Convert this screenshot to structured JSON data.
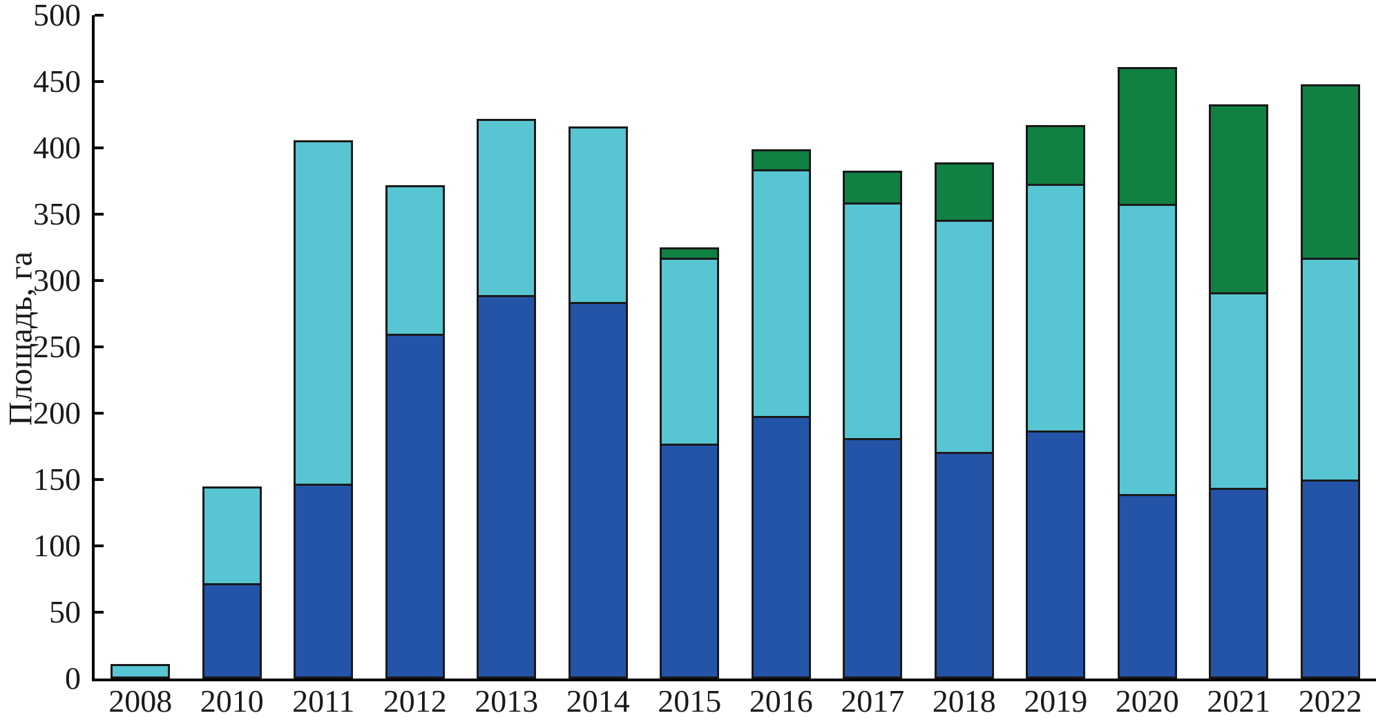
{
  "chart_data": {
    "type": "bar",
    "stacked": true,
    "title": "",
    "xlabel": "",
    "ylabel": "Площадь, га",
    "ylim": [
      0,
      500
    ],
    "yticks": [
      0,
      50,
      100,
      150,
      200,
      250,
      300,
      350,
      400,
      450,
      500
    ],
    "grid": false,
    "legend_position": "none",
    "background_color": "#ffffff",
    "axis_color": "#000000",
    "bar_outline_color": "#1a1a1a",
    "categories": [
      "2008",
      "2010",
      "2011",
      "2012",
      "2013",
      "2014",
      "2015",
      "2016",
      "2017",
      "2018",
      "2019",
      "2020",
      "2021",
      "2022"
    ],
    "series": [
      {
        "name": "blue-series",
        "color": "#2454a8",
        "values": [
          0,
          72,
          147,
          260,
          289,
          284,
          177,
          198,
          181,
          171,
          187,
          139,
          144,
          150
        ]
      },
      {
        "name": "cyan-series",
        "color": "#58c5d2",
        "values": [
          11,
          73,
          259,
          112,
          133,
          132,
          140,
          186,
          178,
          175,
          186,
          219,
          147,
          167
        ]
      },
      {
        "name": "green-series",
        "color": "#108043",
        "values": [
          0,
          0,
          0,
          0,
          0,
          0,
          8,
          15,
          24,
          43,
          44,
          103,
          142,
          131
        ]
      }
    ],
    "totals": [
      11,
      145,
      406,
      372,
      422,
      416,
      325,
      399,
      383,
      389,
      417,
      461,
      433,
      448
    ]
  }
}
